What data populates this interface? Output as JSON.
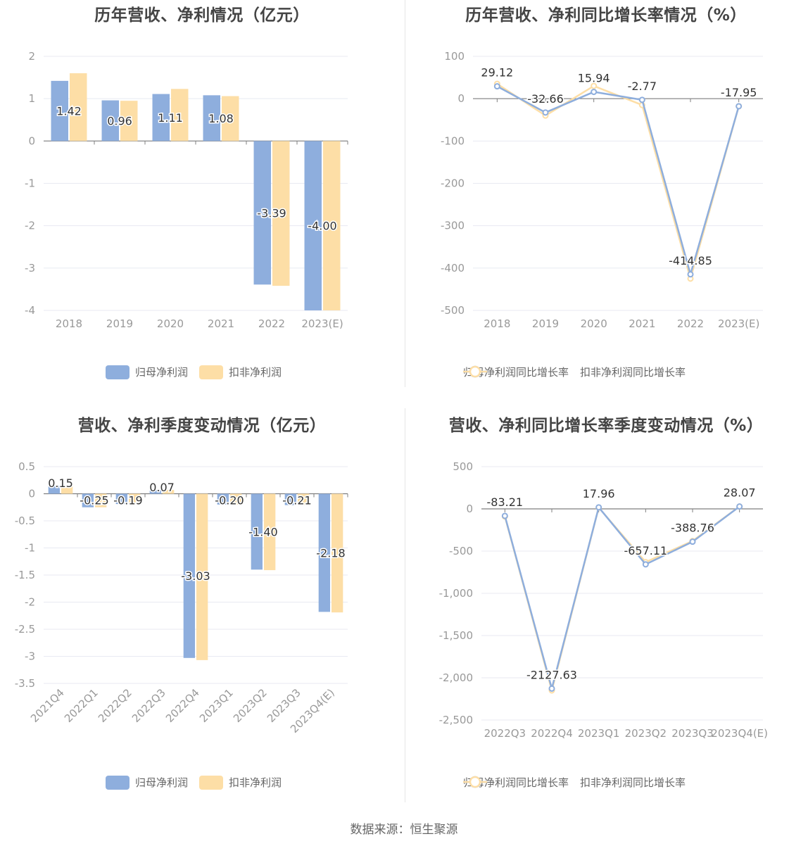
{
  "source": "数据来源：恒生聚源",
  "colors": {
    "primary": "#8eaedd",
    "secondary": "#fddea6",
    "axis": "#7f7f7f",
    "grid": "#e8eaf2",
    "tick": "#999999"
  },
  "chart_data": [
    {
      "type": "bar",
      "title": "历年营收、净利情况（亿元）",
      "categories": [
        "2018",
        "2019",
        "2020",
        "2021",
        "2022",
        "2023(E)"
      ],
      "ylim": [
        -4,
        2
      ],
      "yticks": [
        "2",
        "1",
        "0",
        "-1",
        "-2",
        "-3",
        "-4"
      ],
      "series": [
        {
          "name": "归母净利润",
          "values": [
            1.42,
            0.96,
            1.11,
            1.08,
            -3.39,
            -4.0
          ],
          "labels": [
            "1.42",
            "0.96",
            "1.11",
            "1.08",
            "-3.39",
            "-4.00"
          ]
        },
        {
          "name": "扣非净利润",
          "values": [
            1.6,
            0.95,
            1.23,
            1.06,
            -3.42,
            -4.0
          ]
        }
      ],
      "legend": "bottom"
    },
    {
      "type": "line",
      "title": "历年营收、净利同比增长率情况（%）",
      "categories": [
        "2018",
        "2019",
        "2020",
        "2021",
        "2022",
        "2023(E)"
      ],
      "ylim": [
        -500,
        100
      ],
      "yticks": [
        "100",
        "0",
        "-100",
        "-200",
        "-300",
        "-400",
        "-500"
      ],
      "series": [
        {
          "name": "归母净利润同比增长率",
          "values": [
            29.12,
            -32.66,
            15.94,
            -2.77,
            -414.85,
            -17.95
          ],
          "labels": [
            "29.12",
            "-32.66",
            "15.94",
            "-2.77",
            "-414.85",
            "-17.95"
          ]
        },
        {
          "name": "扣非净利润同比增长率",
          "values": [
            35,
            -40,
            30,
            -15,
            -425,
            -17.95
          ]
        }
      ],
      "legend": "bottom"
    },
    {
      "type": "bar",
      "title": "营收、净利季度变动情况（亿元）",
      "categories": [
        "2021Q4",
        "2022Q1",
        "2022Q2",
        "2022Q3",
        "2022Q4",
        "2023Q1",
        "2023Q2",
        "2023Q3",
        "2023Q4(E)"
      ],
      "ylim": [
        -3.5,
        0.5
      ],
      "yticks": [
        "0.5",
        "0",
        "-0.5",
        "-1",
        "-1.5",
        "-2",
        "-2.5",
        "-3",
        "-3.5"
      ],
      "series": [
        {
          "name": "归母净利润",
          "values": [
            0.15,
            -0.25,
            -0.19,
            0.07,
            -3.03,
            -0.2,
            -1.4,
            -0.21,
            -2.18
          ],
          "labels": [
            "0.15",
            "-0.25",
            "-0.19",
            "0.07",
            "-3.03",
            "-0.20",
            "-1.40",
            "-0.21",
            "-2.18"
          ]
        },
        {
          "name": "扣非净利润",
          "values": [
            0.15,
            -0.25,
            -0.2,
            0.07,
            -3.07,
            -0.2,
            -1.41,
            -0.21,
            -2.19
          ]
        }
      ],
      "legend": "bottom"
    },
    {
      "type": "line",
      "title": "营收、净利同比增长率季度变动情况（%）",
      "categories": [
        "2022Q3",
        "2022Q4",
        "2023Q1",
        "2023Q2",
        "2023Q3",
        "2023Q4(E)"
      ],
      "ylim": [
        -2500,
        500
      ],
      "yticks": [
        "500",
        "0",
        "-500",
        "-1,000",
        "-1,500",
        "-2,000",
        "-2,500"
      ],
      "series": [
        {
          "name": "归母净利润同比增长率",
          "values": [
            -83.21,
            -2127.63,
            17.96,
            -657.11,
            -388.76,
            28.07
          ],
          "labels": [
            "-83.21",
            "-2127.63",
            "17.96",
            "-657.11",
            "-388.76",
            "28.07"
          ]
        },
        {
          "name": "扣非净利润同比增长率",
          "values": [
            -90,
            -2150,
            15,
            -630,
            -380,
            28.07
          ]
        }
      ],
      "legend": "bottom"
    }
  ]
}
